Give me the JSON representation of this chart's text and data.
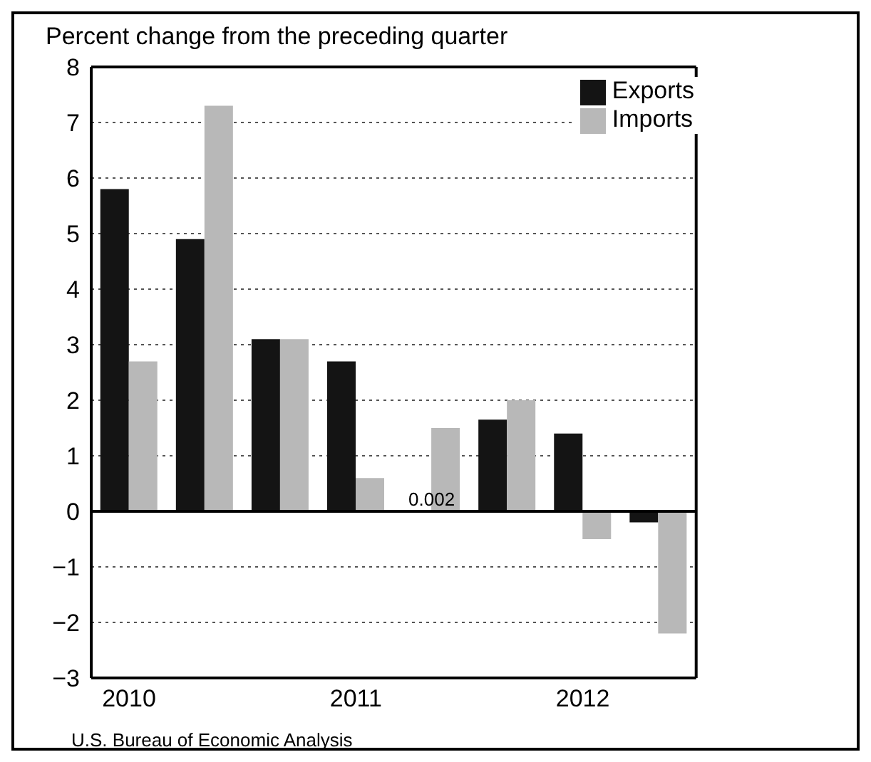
{
  "chart_data": {
    "type": "bar",
    "ylabel": "Percent change from the preceding quarter",
    "categories": [
      "2010",
      null,
      null,
      "2011",
      null,
      null,
      "2012",
      null
    ],
    "series": [
      {
        "name": "Exports",
        "color": "#141414",
        "values": [
          5.8,
          4.9,
          3.1,
          2.7,
          0.002,
          1.65,
          1.4,
          -0.2
        ],
        "value_labels": [
          null,
          null,
          null,
          null,
          "0.002",
          null,
          null,
          null
        ]
      },
      {
        "name": "Imports",
        "color": "#b8b8b8",
        "values": [
          2.7,
          7.3,
          3.1,
          0.6,
          1.5,
          2.0,
          -0.5,
          -2.2
        ]
      }
    ],
    "ylim": [
      -3,
      8
    ],
    "yticks": [
      {
        "value": -3,
        "label": "−3"
      },
      {
        "value": -2,
        "label": "−2"
      },
      {
        "value": -1,
        "label": "−1"
      },
      0,
      1,
      2,
      3,
      4,
      5,
      6,
      7,
      8
    ],
    "ref_lines": [
      {
        "axis": "y",
        "value": 0,
        "color": "#000000"
      }
    ],
    "grid": "y",
    "legend": "top right",
    "annotations": [
      "U.S. Bureau of Economic Analysis"
    ]
  }
}
